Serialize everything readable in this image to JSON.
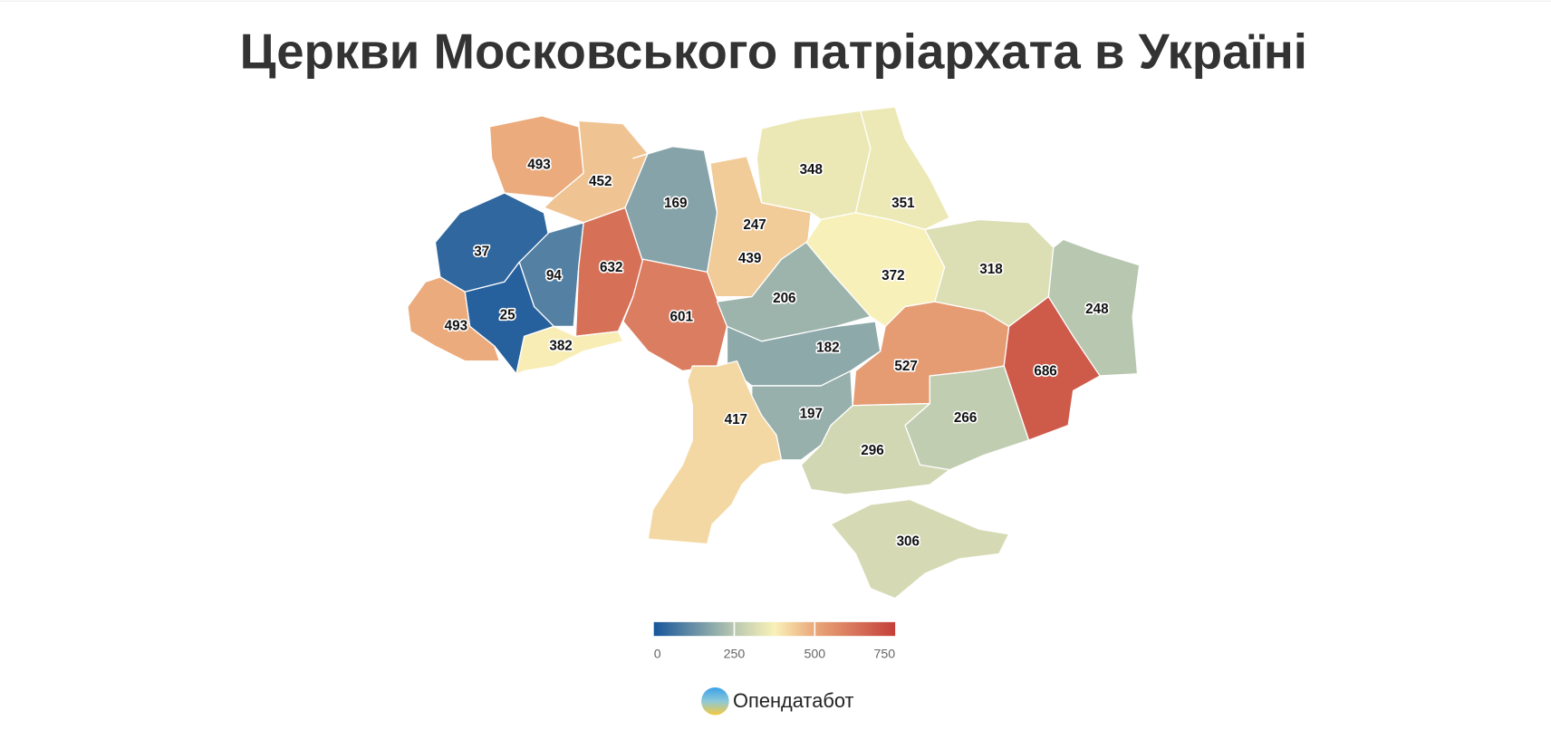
{
  "chart_data": {
    "type": "choropleth",
    "title": "Церкви Московського патріархата в Україні",
    "values": [
      493,
      452,
      169,
      247,
      348,
      351,
      37,
      94,
      632,
      439,
      372,
      318,
      248,
      601,
      206,
      25,
      493,
      382,
      182,
      527,
      686,
      417,
      197,
      266,
      296,
      306
    ],
    "colorscale": [
      [
        0,
        "#17569b"
      ],
      [
        250,
        "#b9c8b0"
      ],
      [
        375,
        "#f9f1b8"
      ],
      [
        500,
        "#eaa77a"
      ],
      [
        750,
        "#c4403a"
      ]
    ],
    "clim": [
      0,
      750
    ],
    "cticks": [
      0,
      250,
      500,
      750
    ],
    "brand": "Опендатабот"
  }
}
